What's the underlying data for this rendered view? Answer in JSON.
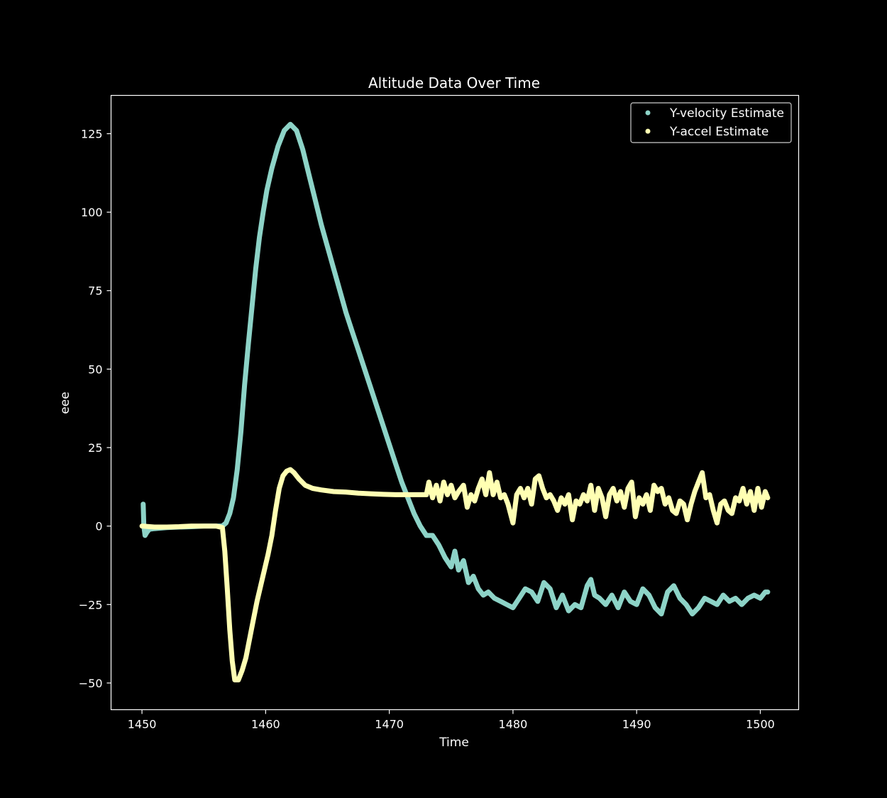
{
  "chart_data": {
    "type": "scatter",
    "title": "Altitude Data Over Time",
    "xlabel": "Time",
    "ylabel": "eee",
    "xlim": [
      1447.5,
      1503.1
    ],
    "ylim": [
      -58.5,
      137.2
    ],
    "xticks": [
      1450,
      1460,
      1470,
      1480,
      1490,
      1500
    ],
    "yticks": [
      -50,
      -25,
      0,
      25,
      50,
      75,
      100,
      125
    ],
    "grid": false,
    "legend_position": "top-right",
    "background": "#000000",
    "series": [
      {
        "name": "Y-velocity Estimate",
        "color": "#8dd3c7",
        "points": [
          [
            1450.1,
            7
          ],
          [
            1450.15,
            0
          ],
          [
            1450.25,
            -3
          ],
          [
            1450.4,
            -2
          ],
          [
            1450.6,
            -1
          ],
          [
            1451,
            -0.8
          ],
          [
            1452,
            -0.5
          ],
          [
            1453,
            -0.3
          ],
          [
            1454,
            -0.2
          ],
          [
            1455,
            0
          ],
          [
            1456,
            0
          ],
          [
            1456.5,
            0
          ],
          [
            1456.8,
            1
          ],
          [
            1457.1,
            4
          ],
          [
            1457.4,
            9
          ],
          [
            1457.7,
            18
          ],
          [
            1458.0,
            30
          ],
          [
            1458.3,
            45
          ],
          [
            1458.6,
            58
          ],
          [
            1458.9,
            70
          ],
          [
            1459.2,
            82
          ],
          [
            1459.5,
            92
          ],
          [
            1459.8,
            100
          ],
          [
            1460.1,
            107
          ],
          [
            1460.5,
            114
          ],
          [
            1461.0,
            121
          ],
          [
            1461.5,
            126
          ],
          [
            1462.0,
            128
          ],
          [
            1462.5,
            126
          ],
          [
            1463.0,
            120
          ],
          [
            1463.5,
            112
          ],
          [
            1464.0,
            104
          ],
          [
            1464.5,
            96
          ],
          [
            1465.0,
            89
          ],
          [
            1465.5,
            82
          ],
          [
            1466.0,
            75
          ],
          [
            1466.5,
            68
          ],
          [
            1467.0,
            62
          ],
          [
            1467.5,
            56
          ],
          [
            1468.0,
            50
          ],
          [
            1468.5,
            44
          ],
          [
            1469.0,
            38
          ],
          [
            1469.5,
            32
          ],
          [
            1470.0,
            26
          ],
          [
            1470.5,
            20
          ],
          [
            1471.0,
            14
          ],
          [
            1471.5,
            9
          ],
          [
            1472.0,
            4
          ],
          [
            1472.5,
            0
          ],
          [
            1473.0,
            -3
          ],
          [
            1473.5,
            -3
          ],
          [
            1474.0,
            -6
          ],
          [
            1474.5,
            -10
          ],
          [
            1475.0,
            -13
          ],
          [
            1475.3,
            -8
          ],
          [
            1475.6,
            -14
          ],
          [
            1476.0,
            -11
          ],
          [
            1476.4,
            -18
          ],
          [
            1476.8,
            -16
          ],
          [
            1477.2,
            -20
          ],
          [
            1477.6,
            -22
          ],
          [
            1478.0,
            -21
          ],
          [
            1478.5,
            -23
          ],
          [
            1479.0,
            -24
          ],
          [
            1479.5,
            -25
          ],
          [
            1480.0,
            -26
          ],
          [
            1480.5,
            -23
          ],
          [
            1481.0,
            -20
          ],
          [
            1481.5,
            -21
          ],
          [
            1482.0,
            -24
          ],
          [
            1482.5,
            -18
          ],
          [
            1483.0,
            -20
          ],
          [
            1483.5,
            -26
          ],
          [
            1484.0,
            -22
          ],
          [
            1484.5,
            -27
          ],
          [
            1485.0,
            -25
          ],
          [
            1485.5,
            -26
          ],
          [
            1486.0,
            -19
          ],
          [
            1486.3,
            -17
          ],
          [
            1486.6,
            -22
          ],
          [
            1487.0,
            -23
          ],
          [
            1487.5,
            -25
          ],
          [
            1488.0,
            -22
          ],
          [
            1488.5,
            -26
          ],
          [
            1489.0,
            -21
          ],
          [
            1489.5,
            -24
          ],
          [
            1490.0,
            -25
          ],
          [
            1490.5,
            -20
          ],
          [
            1491.0,
            -22
          ],
          [
            1491.5,
            -26
          ],
          [
            1492.0,
            -28
          ],
          [
            1492.5,
            -21
          ],
          [
            1493.0,
            -19
          ],
          [
            1493.5,
            -23
          ],
          [
            1494.0,
            -25
          ],
          [
            1494.5,
            -28
          ],
          [
            1495.0,
            -26
          ],
          [
            1495.5,
            -23
          ],
          [
            1496.0,
            -24
          ],
          [
            1496.5,
            -25
          ],
          [
            1497.0,
            -22
          ],
          [
            1497.5,
            -24
          ],
          [
            1498.0,
            -23
          ],
          [
            1498.5,
            -25
          ],
          [
            1499.0,
            -23
          ],
          [
            1499.5,
            -22
          ],
          [
            1500.0,
            -23
          ],
          [
            1500.4,
            -21
          ],
          [
            1500.6,
            -21
          ]
        ]
      },
      {
        "name": "Y-accel Estimate",
        "color": "#ffffb3",
        "points": [
          [
            1450.0,
            0
          ],
          [
            1451,
            -0.3
          ],
          [
            1452,
            -0.3
          ],
          [
            1453,
            -0.2
          ],
          [
            1454,
            0
          ],
          [
            1455,
            0
          ],
          [
            1456,
            0
          ],
          [
            1456.5,
            -0.5
          ],
          [
            1456.7,
            -8
          ],
          [
            1456.9,
            -20
          ],
          [
            1457.1,
            -33
          ],
          [
            1457.3,
            -43
          ],
          [
            1457.5,
            -49
          ],
          [
            1457.8,
            -49
          ],
          [
            1458.1,
            -46
          ],
          [
            1458.4,
            -42
          ],
          [
            1458.7,
            -36
          ],
          [
            1459.0,
            -30
          ],
          [
            1459.3,
            -24
          ],
          [
            1459.6,
            -19
          ],
          [
            1459.9,
            -14
          ],
          [
            1460.2,
            -9
          ],
          [
            1460.5,
            -3
          ],
          [
            1460.8,
            5
          ],
          [
            1461.1,
            12
          ],
          [
            1461.4,
            16
          ],
          [
            1461.7,
            17.5
          ],
          [
            1462.0,
            18
          ],
          [
            1462.3,
            17
          ],
          [
            1462.7,
            15
          ],
          [
            1463.2,
            13
          ],
          [
            1463.8,
            12
          ],
          [
            1464.5,
            11.5
          ],
          [
            1465.5,
            11
          ],
          [
            1466.5,
            10.8
          ],
          [
            1467.5,
            10.5
          ],
          [
            1468.5,
            10.3
          ],
          [
            1469.5,
            10.1
          ],
          [
            1470.5,
            10
          ],
          [
            1471.5,
            10
          ],
          [
            1472.5,
            10
          ],
          [
            1473.0,
            10
          ],
          [
            1473.2,
            14
          ],
          [
            1473.5,
            9
          ],
          [
            1473.8,
            13
          ],
          [
            1474.1,
            8
          ],
          [
            1474.4,
            14
          ],
          [
            1474.7,
            10
          ],
          [
            1475.0,
            13
          ],
          [
            1475.3,
            9
          ],
          [
            1475.6,
            11
          ],
          [
            1476.0,
            13
          ],
          [
            1476.3,
            6
          ],
          [
            1476.6,
            10
          ],
          [
            1476.9,
            8
          ],
          [
            1477.2,
            12
          ],
          [
            1477.5,
            15
          ],
          [
            1477.8,
            10
          ],
          [
            1478.1,
            17
          ],
          [
            1478.4,
            10
          ],
          [
            1478.7,
            14
          ],
          [
            1479.0,
            9
          ],
          [
            1479.3,
            10
          ],
          [
            1479.6,
            7
          ],
          [
            1480.0,
            1
          ],
          [
            1480.3,
            10
          ],
          [
            1480.6,
            12
          ],
          [
            1480.9,
            9
          ],
          [
            1481.2,
            12
          ],
          [
            1481.5,
            7
          ],
          [
            1481.8,
            15
          ],
          [
            1482.1,
            16
          ],
          [
            1482.4,
            12
          ],
          [
            1482.7,
            9
          ],
          [
            1483.0,
            10
          ],
          [
            1483.3,
            8
          ],
          [
            1483.6,
            5
          ],
          [
            1483.9,
            9
          ],
          [
            1484.2,
            7
          ],
          [
            1484.5,
            10
          ],
          [
            1484.8,
            2
          ],
          [
            1485.1,
            8
          ],
          [
            1485.4,
            7
          ],
          [
            1485.7,
            10
          ],
          [
            1486.0,
            8
          ],
          [
            1486.3,
            13
          ],
          [
            1486.6,
            5
          ],
          [
            1486.9,
            12
          ],
          [
            1487.2,
            9
          ],
          [
            1487.5,
            3
          ],
          [
            1487.8,
            10
          ],
          [
            1488.1,
            12
          ],
          [
            1488.4,
            8
          ],
          [
            1488.7,
            11
          ],
          [
            1489.0,
            6
          ],
          [
            1489.3,
            12
          ],
          [
            1489.6,
            14
          ],
          [
            1489.9,
            3
          ],
          [
            1490.2,
            9
          ],
          [
            1490.5,
            7
          ],
          [
            1490.8,
            10
          ],
          [
            1491.1,
            5
          ],
          [
            1491.4,
            13
          ],
          [
            1491.7,
            11
          ],
          [
            1492.0,
            12
          ],
          [
            1492.3,
            7
          ],
          [
            1492.6,
            9
          ],
          [
            1492.9,
            5
          ],
          [
            1493.2,
            4
          ],
          [
            1493.5,
            8
          ],
          [
            1493.8,
            7
          ],
          [
            1494.1,
            2
          ],
          [
            1494.4,
            7
          ],
          [
            1494.7,
            11
          ],
          [
            1495.0,
            14
          ],
          [
            1495.3,
            17
          ],
          [
            1495.6,
            9
          ],
          [
            1495.9,
            10
          ],
          [
            1496.2,
            5
          ],
          [
            1496.5,
            1
          ],
          [
            1496.8,
            7
          ],
          [
            1497.1,
            8
          ],
          [
            1497.4,
            5
          ],
          [
            1497.7,
            4
          ],
          [
            1498.0,
            9
          ],
          [
            1498.3,
            8
          ],
          [
            1498.6,
            12
          ],
          [
            1498.9,
            7
          ],
          [
            1499.2,
            11
          ],
          [
            1499.5,
            5
          ],
          [
            1499.8,
            12
          ],
          [
            1500.1,
            6
          ],
          [
            1500.4,
            11
          ],
          [
            1500.6,
            9
          ]
        ]
      }
    ]
  }
}
